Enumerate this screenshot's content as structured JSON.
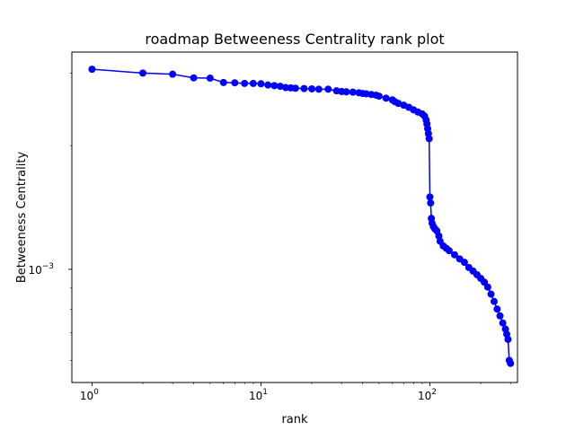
{
  "chart_data": {
    "type": "line",
    "title": "roadmap Betweeness Centrality rank plot",
    "xlabel": "rank",
    "ylabel": "Betweeness Centrality",
    "xscale": "log",
    "yscale": "log",
    "xlim": [
      0.76,
      330
    ],
    "ylim": [
      0.00053,
      0.00338
    ],
    "x_ticks": [
      {
        "value": 1,
        "base": "10",
        "exp": "0"
      },
      {
        "value": 10,
        "base": "10",
        "exp": "1"
      },
      {
        "value": 100,
        "base": "10",
        "exp": "2"
      }
    ],
    "y_ticks": [
      {
        "value": 0.001,
        "base": "10",
        "exp": "−3"
      }
    ],
    "grid": false,
    "legend": "none",
    "series": [
      {
        "color": "#0000ff",
        "marker": "circle",
        "x": [
          1,
          2,
          3,
          4,
          5,
          6,
          7,
          8,
          9,
          10,
          11,
          12,
          13,
          14,
          15,
          16,
          18,
          20,
          22,
          25,
          28,
          30,
          32,
          35,
          38,
          40,
          42,
          45,
          48,
          50,
          55,
          60,
          62,
          65,
          70,
          75,
          80,
          85,
          90,
          93,
          95,
          96,
          97,
          98,
          99,
          100,
          101,
          102,
          103,
          105,
          107,
          110,
          113,
          115,
          120,
          125,
          130,
          140,
          150,
          160,
          170,
          180,
          190,
          200,
          210,
          220,
          230,
          240,
          250,
          260,
          270,
          280,
          285,
          290,
          295,
          300
        ],
        "y": [
          0.00307,
          0.003005,
          0.002985,
          0.002925,
          0.00292,
          0.00285,
          0.002845,
          0.002835,
          0.002835,
          0.00283,
          0.00281,
          0.0028,
          0.00279,
          0.00277,
          0.002765,
          0.00276,
          0.002755,
          0.00275,
          0.002745,
          0.002745,
          0.00272,
          0.00271,
          0.002705,
          0.0027,
          0.00269,
          0.00268,
          0.002675,
          0.002665,
          0.002655,
          0.00264,
          0.00261,
          0.002585,
          0.00256,
          0.002535,
          0.00251,
          0.00248,
          0.002445,
          0.002415,
          0.00239,
          0.00236,
          0.00231,
          0.00226,
          0.0022,
          0.00214,
          0.00208,
          0.0015,
          0.00145,
          0.00133,
          0.001295,
          0.00127,
          0.001255,
          0.00124,
          0.001205,
          0.00117,
          0.00114,
          0.001125,
          0.00111,
          0.001085,
          0.00106,
          0.00104,
          0.00101,
          0.00099,
          0.00097,
          0.00095,
          0.00093,
          0.000905,
          0.00087,
          0.000835,
          0.0008,
          0.00077,
          0.00074,
          0.000715,
          0.000695,
          0.000675,
          0.0006,
          0.00059
        ]
      }
    ]
  }
}
